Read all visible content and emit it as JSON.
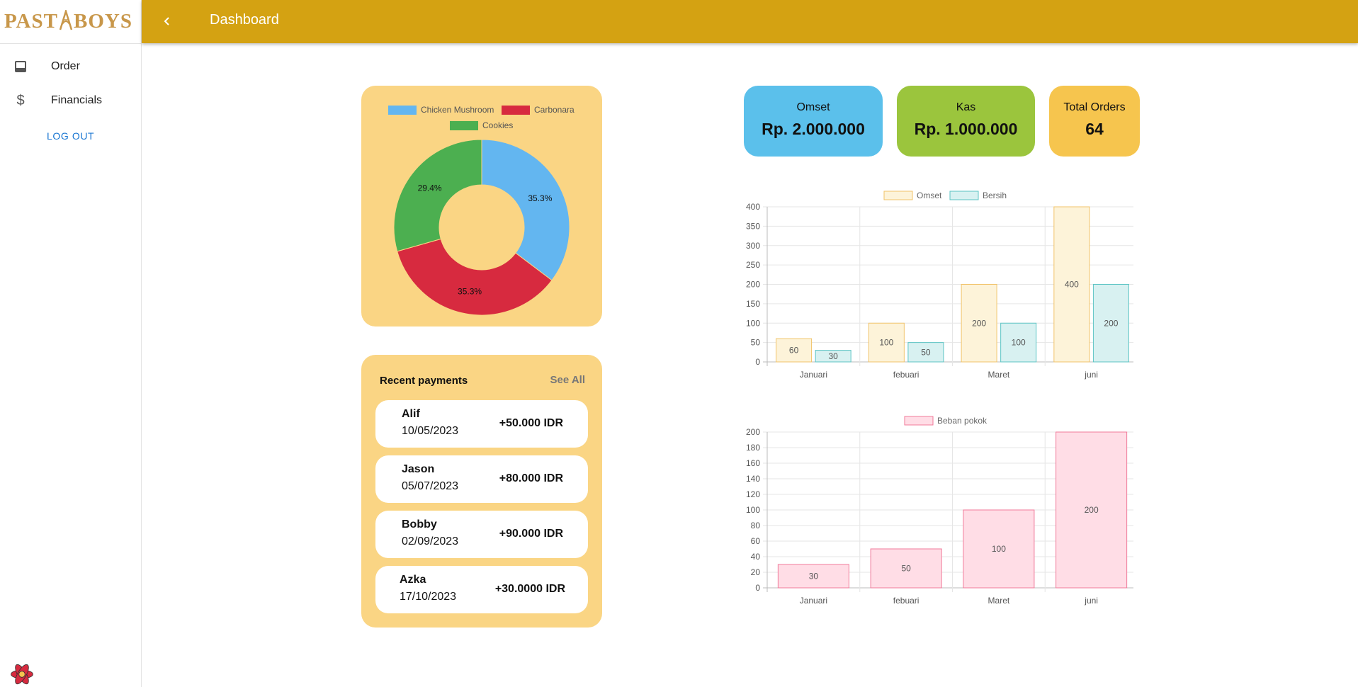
{
  "brand": {
    "logo_text_left": "PAST",
    "logo_text_right": "BOYS"
  },
  "sidebar": {
    "items": [
      {
        "label": "Order",
        "icon": "inbox-icon"
      },
      {
        "label": "Financials",
        "icon": "dollar-icon"
      }
    ],
    "logout_label": "LOG OUT"
  },
  "header": {
    "title": "Dashboard",
    "back_icon": "chevron-left-icon"
  },
  "stats": {
    "omset": {
      "label": "Omset",
      "value": "Rp. 2.000.000",
      "color": "#5bc0eb"
    },
    "kas": {
      "label": "Kas",
      "value": "Rp. 1.000.000",
      "color": "#9bc53d"
    },
    "orders": {
      "label": "Total Orders",
      "value": "64",
      "color": "#f6c54e"
    }
  },
  "payments": {
    "title": "Recent payments",
    "see_all": "See All",
    "items": [
      {
        "name": "Alif",
        "date": "10/05/2023",
        "amount": "+50.000 IDR"
      },
      {
        "name": "Jason",
        "date": "05/07/2023",
        "amount": "+80.000 IDR"
      },
      {
        "name": "Bobby",
        "date": "02/09/2023",
        "amount": "+90.000 IDR"
      },
      {
        "name": "Azka",
        "date": "17/10/2023",
        "amount": "+30.0000 IDR"
      }
    ]
  },
  "chart_data": [
    {
      "type": "pie",
      "variant": "doughnut",
      "labels": [
        "Chicken Mushroom",
        "Carbonara",
        "Cookies"
      ],
      "values": [
        35.3,
        35.3,
        29.4
      ],
      "value_labels": [
        "35.3%",
        "35.3%",
        "29.4%"
      ],
      "colors": [
        "#63b6f0",
        "#d72a3f",
        "#4caf50"
      ],
      "legend": "top"
    },
    {
      "type": "bar",
      "categories": [
        "Januari",
        "febuari",
        "Maret",
        "juni"
      ],
      "series": [
        {
          "name": "Omset",
          "values": [
            60,
            100,
            200,
            400
          ],
          "fill": "#fdf3d9",
          "stroke": "#f1c36a"
        },
        {
          "name": "Bersih",
          "values": [
            30,
            50,
            100,
            200
          ],
          "fill": "#d8f1f1",
          "stroke": "#5cc4c4"
        }
      ],
      "ylim": [
        0,
        400
      ],
      "yticks": [
        0,
        50,
        100,
        150,
        200,
        250,
        300,
        350,
        400
      ],
      "grid": true,
      "legend": "top"
    },
    {
      "type": "bar",
      "categories": [
        "Januari",
        "febuari",
        "Maret",
        "juni"
      ],
      "series": [
        {
          "name": "Beban pokok",
          "values": [
            30,
            50,
            100,
            200
          ],
          "fill": "#ffdde6",
          "stroke": "#f07a9a"
        }
      ],
      "ylim": [
        0,
        200
      ],
      "yticks": [
        0,
        20,
        40,
        60,
        80,
        100,
        120,
        140,
        160,
        180,
        200
      ],
      "grid": true,
      "legend": "top"
    }
  ]
}
